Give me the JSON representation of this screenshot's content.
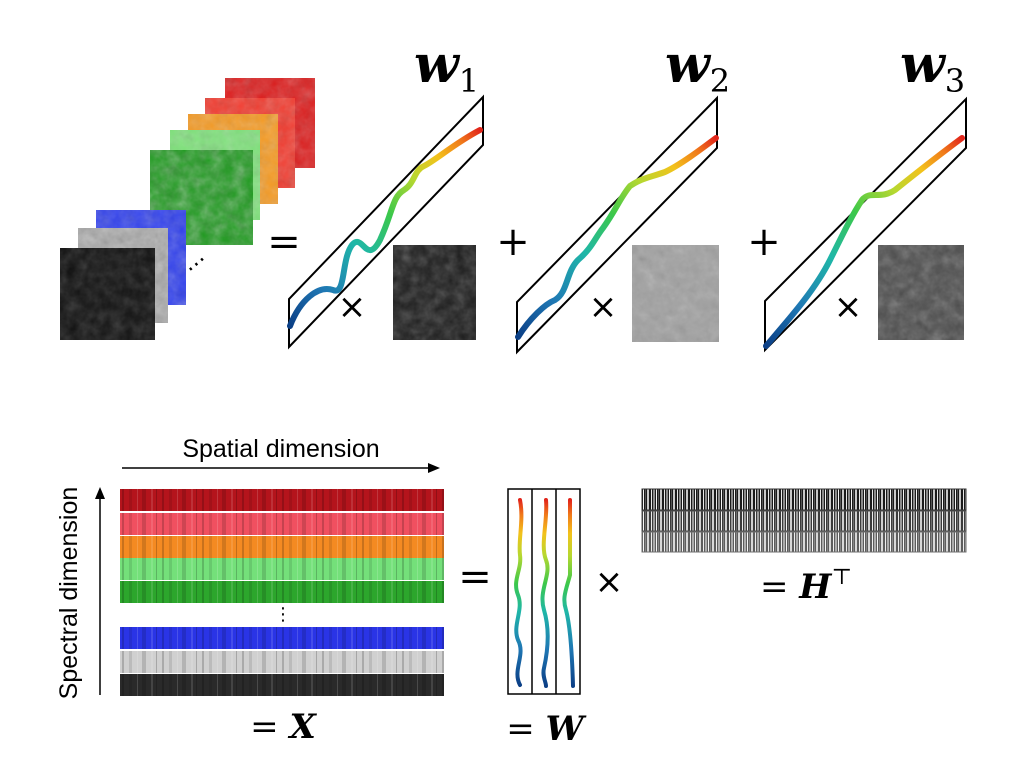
{
  "weights": {
    "labels": [
      {
        "base": "w",
        "sub": "1"
      },
      {
        "base": "w",
        "sub": "2"
      },
      {
        "base": "w",
        "sub": "3"
      }
    ]
  },
  "operators": {
    "equals": "=",
    "plus": "+",
    "times": "×",
    "ellipsis": "⋯",
    "vdots": "⋮"
  },
  "axes": {
    "spatial": "Spatial dimension",
    "spectral": "Spectral dimension"
  },
  "matrices": {
    "x": {
      "prefix": "= ",
      "symbol": "X"
    },
    "w": {
      "prefix": "= ",
      "symbol": "W"
    },
    "h": {
      "prefix": "= ",
      "symbol": "H",
      "sup": "⊤"
    }
  },
  "colors": {
    "band_colors": [
      "#b4141c",
      "#f05060",
      "#f48a22",
      "#74e07a",
      "#2ca62c",
      "#2a34e6",
      "#d0d0d0",
      "#2a2a2a"
    ],
    "curve_gradient": [
      "#0b3f86",
      "#1f78b4",
      "#1fb7a8",
      "#3cc84a",
      "#b6d830",
      "#f3c21b",
      "#f07a1a",
      "#e1251b"
    ]
  }
}
